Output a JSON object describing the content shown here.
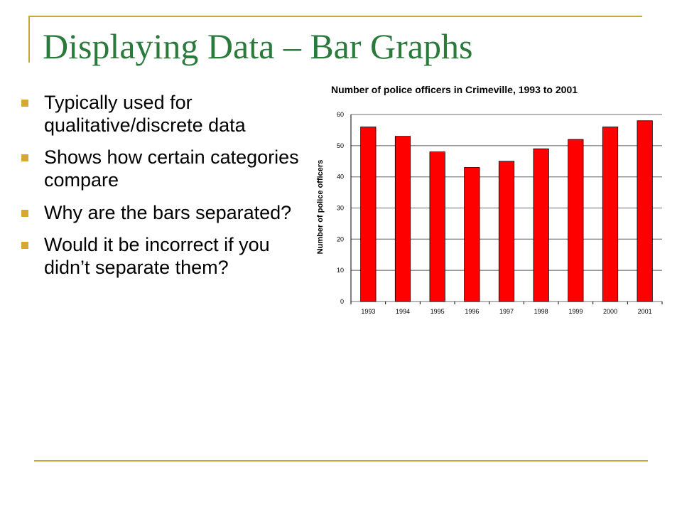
{
  "slide": {
    "title": "Displaying Data – Bar Graphs",
    "bullets": [
      "Typically used for qualitative/discrete data",
      "Shows how certain categories compare",
      "Why are the bars separated?",
      "Would it be incorrect if you didn’t separate them?"
    ],
    "accent_color": "#c8a83a",
    "title_color": "#2a7a3c",
    "bullet_color": "#d6a82e"
  },
  "chart_data": {
    "type": "bar",
    "title": "Number of police officers in Crimeville, 1993 to 2001",
    "xlabel": "",
    "ylabel": "Number of police officers",
    "categories": [
      "1993",
      "1994",
      "1995",
      "1996",
      "1997",
      "1998",
      "1999",
      "2000",
      "2001"
    ],
    "values": [
      56,
      53,
      48,
      43,
      45,
      49,
      52,
      56,
      58
    ],
    "ylim": [
      0,
      60
    ],
    "yticks": [
      0,
      10,
      20,
      30,
      40,
      50,
      60
    ],
    "grid": true,
    "legend": "none",
    "bar_color": "#ff0000"
  }
}
